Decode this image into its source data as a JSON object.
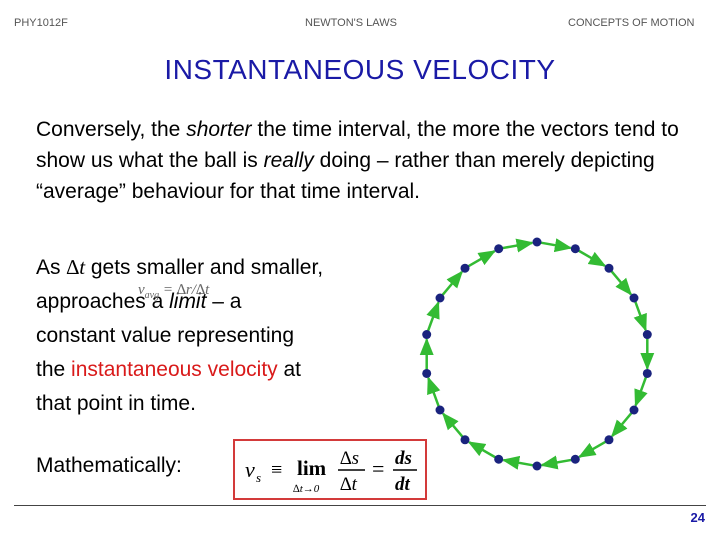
{
  "header": {
    "left": "PHY1012F",
    "center": "NEWTON'S LAWS",
    "right": "CONCEPTS OF MOTION"
  },
  "title": "INSTANTANEOUS VELOCITY",
  "intro": {
    "part1": "Conversely, the ",
    "shorter": "shorter",
    "part2": " the time interval, the more the vectors tend to show us what the ball is ",
    "really": "really",
    "part3": " doing – rather than merely depicting “average” behaviour for that time interval."
  },
  "para2": {
    "as": "As ",
    "delta_t": "∆t",
    "gets": " gets smaller and smaller,",
    "approaches": "approaches a ",
    "limit": "limit",
    "dash": " – a",
    "constant": "constant value representing",
    "the": "the ",
    "inst_vel": "instantaneous velocity",
    "at": " at",
    "that_point": "that point in time."
  },
  "overlay_fraction": {
    "v": "v",
    "sub": "avg",
    "eq": "= ∆r/∆t"
  },
  "math_label": "Mathematically:",
  "formula": {
    "v": "v",
    "sub": "s",
    "equiv": "≡",
    "lim": "lim",
    "lim_sub": "∆t→0",
    "num1": "∆s",
    "den1": "∆t",
    "eq": "=",
    "num2": "ds",
    "den2": "dt"
  },
  "figure": {
    "dot_count": 18,
    "dot_color": "#1a237e",
    "arrow_color": "#33bb33"
  },
  "page_number": "24"
}
